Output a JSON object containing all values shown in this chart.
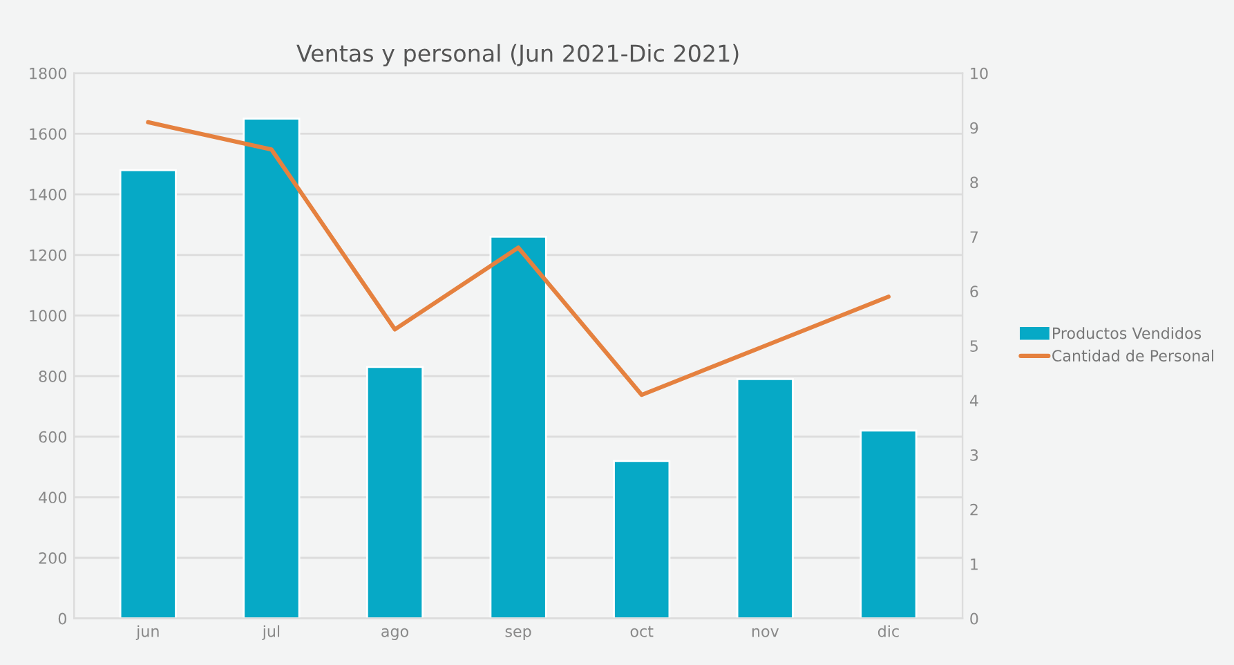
{
  "chart_data": {
    "type": "bar",
    "title": "Ventas y personal (Jun 2021-Dic 2021)",
    "categories": [
      "jun",
      "jul",
      "ago",
      "sep",
      "oct",
      "nov",
      "dic"
    ],
    "series": [
      {
        "name": "Productos Vendidos",
        "color": "#06a9c6",
        "values": [
          1480,
          1650,
          830,
          1260,
          520,
          790,
          620
        ]
      },
      {
        "name": "Cantidad de Personal",
        "type": "line",
        "axis": "y2",
        "color": "#e5813f",
        "values": [
          9.1,
          8.6,
          5.3,
          6.8,
          4.1,
          5.0,
          5.9
        ]
      }
    ],
    "ylim": [
      0,
      1800
    ],
    "yticks": [
      0,
      200,
      400,
      600,
      800,
      1000,
      1200,
      1400,
      1600,
      1800
    ],
    "y2lim": [
      0,
      10
    ],
    "y2ticks": [
      0,
      1,
      2,
      3,
      4,
      5,
      6,
      7,
      8,
      9,
      10
    ],
    "grid": "y",
    "legend": "right"
  }
}
